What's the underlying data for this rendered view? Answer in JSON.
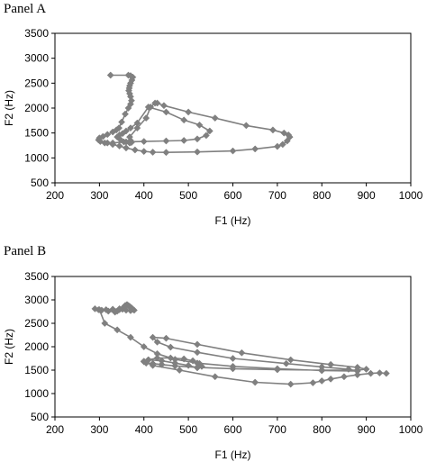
{
  "chart_data": [
    {
      "type": "scatter",
      "title": "Panel A",
      "xlabel": "F1 (Hz)",
      "ylabel": "F2 (Hz)",
      "xlim": [
        200,
        1000
      ],
      "ylim": [
        500,
        3500
      ],
      "xticks": [
        "200",
        "300",
        "400",
        "500",
        "600",
        "700",
        "800",
        "900",
        "1000"
      ],
      "yticks": [
        "500",
        "1000",
        "1500",
        "2000",
        "2500",
        "3000",
        "3500"
      ],
      "grid": false,
      "series": [
        {
          "marker": "diamond",
          "color": "#808080",
          "connected": true,
          "x": [
            325,
            365,
            370,
            375,
            373,
            370,
            368,
            367,
            366,
            368,
            370,
            372,
            370,
            365,
            358,
            350,
            344,
            338,
            330,
            318,
            308,
            300,
            298,
            302,
            312,
            330,
            355,
            400,
            450,
            490,
            520,
            540,
            548,
            525,
            490,
            450,
            410,
            385,
            370,
            360,
            352,
            345,
            340,
            348,
            360,
            368,
            372,
            370,
            368,
            385,
            405,
            415,
            425,
            430,
            445,
            500,
            560,
            630,
            690,
            715,
            725,
            728,
            722,
            712,
            700,
            650,
            600,
            520,
            450,
            420,
            400,
            380,
            360,
            345,
            330,
            318
          ],
          "y": [
            2660,
            2660,
            2650,
            2620,
            2560,
            2500,
            2450,
            2400,
            2350,
            2290,
            2230,
            2150,
            2080,
            2000,
            1880,
            1720,
            1600,
            1560,
            1520,
            1470,
            1430,
            1400,
            1360,
            1330,
            1300,
            1300,
            1320,
            1330,
            1340,
            1350,
            1380,
            1450,
            1540,
            1660,
            1760,
            1920,
            2020,
            1700,
            1600,
            1540,
            1490,
            1460,
            1420,
            1360,
            1320,
            1300,
            1310,
            1350,
            1420,
            1600,
            1800,
            2020,
            2100,
            2100,
            2050,
            1920,
            1800,
            1650,
            1560,
            1500,
            1460,
            1420,
            1340,
            1270,
            1230,
            1180,
            1140,
            1120,
            1110,
            1115,
            1130,
            1160,
            1200,
            1240,
            1270,
            1300
          ]
        }
      ]
    },
    {
      "type": "scatter",
      "title": "Panel B",
      "xlabel": "F1 (Hz)",
      "ylabel": "F2 (Hz)",
      "xlim": [
        200,
        1000
      ],
      "ylim": [
        500,
        3500
      ],
      "xticks": [
        "200",
        "300",
        "400",
        "500",
        "600",
        "700",
        "800",
        "900",
        "1000"
      ],
      "yticks": [
        "500",
        "1000",
        "1500",
        "2000",
        "2500",
        "3000",
        "3500"
      ],
      "grid": false,
      "series": [
        {
          "marker": "diamond",
          "color": "#808080",
          "connected": true,
          "x": [
            290,
            298,
            305,
            315,
            330,
            345,
            355,
            358,
            362,
            365,
            368,
            372,
            375,
            378,
            370,
            360,
            352,
            345,
            340,
            335,
            320,
            300,
            312,
            340,
            370,
            400,
            430,
            470,
            520,
            600,
            700,
            800,
            880,
            860,
            800,
            720,
            600,
            520,
            460,
            430,
            420,
            450,
            520,
            620,
            730,
            820,
            880,
            900,
            880,
            800,
            700,
            600,
            520,
            470,
            440,
            420,
            405,
            400,
            410,
            430,
            460,
            490,
            510,
            525,
            530,
            520,
            500,
            470,
            440,
            410,
            400,
            420,
            480,
            560,
            650,
            730,
            780,
            800,
            820,
            850,
            880,
            910,
            930,
            945
          ],
          "y": [
            2810,
            2790,
            2780,
            2790,
            2800,
            2810,
            2850,
            2880,
            2900,
            2880,
            2860,
            2830,
            2800,
            2780,
            2770,
            2780,
            2800,
            2790,
            2760,
            2740,
            2760,
            2790,
            2500,
            2360,
            2200,
            2000,
            1850,
            1730,
            1650,
            1580,
            1530,
            1490,
            1480,
            1520,
            1570,
            1640,
            1750,
            1880,
            1990,
            2100,
            2200,
            2180,
            2050,
            1870,
            1720,
            1620,
            1560,
            1520,
            1500,
            1500,
            1510,
            1530,
            1560,
            1590,
            1620,
            1640,
            1650,
            1680,
            1720,
            1760,
            1760,
            1740,
            1700,
            1640,
            1580,
            1550,
            1600,
            1650,
            1700,
            1720,
            1690,
            1600,
            1500,
            1360,
            1240,
            1200,
            1230,
            1270,
            1310,
            1360,
            1400,
            1430,
            1440,
            1430
          ]
        }
      ]
    }
  ]
}
